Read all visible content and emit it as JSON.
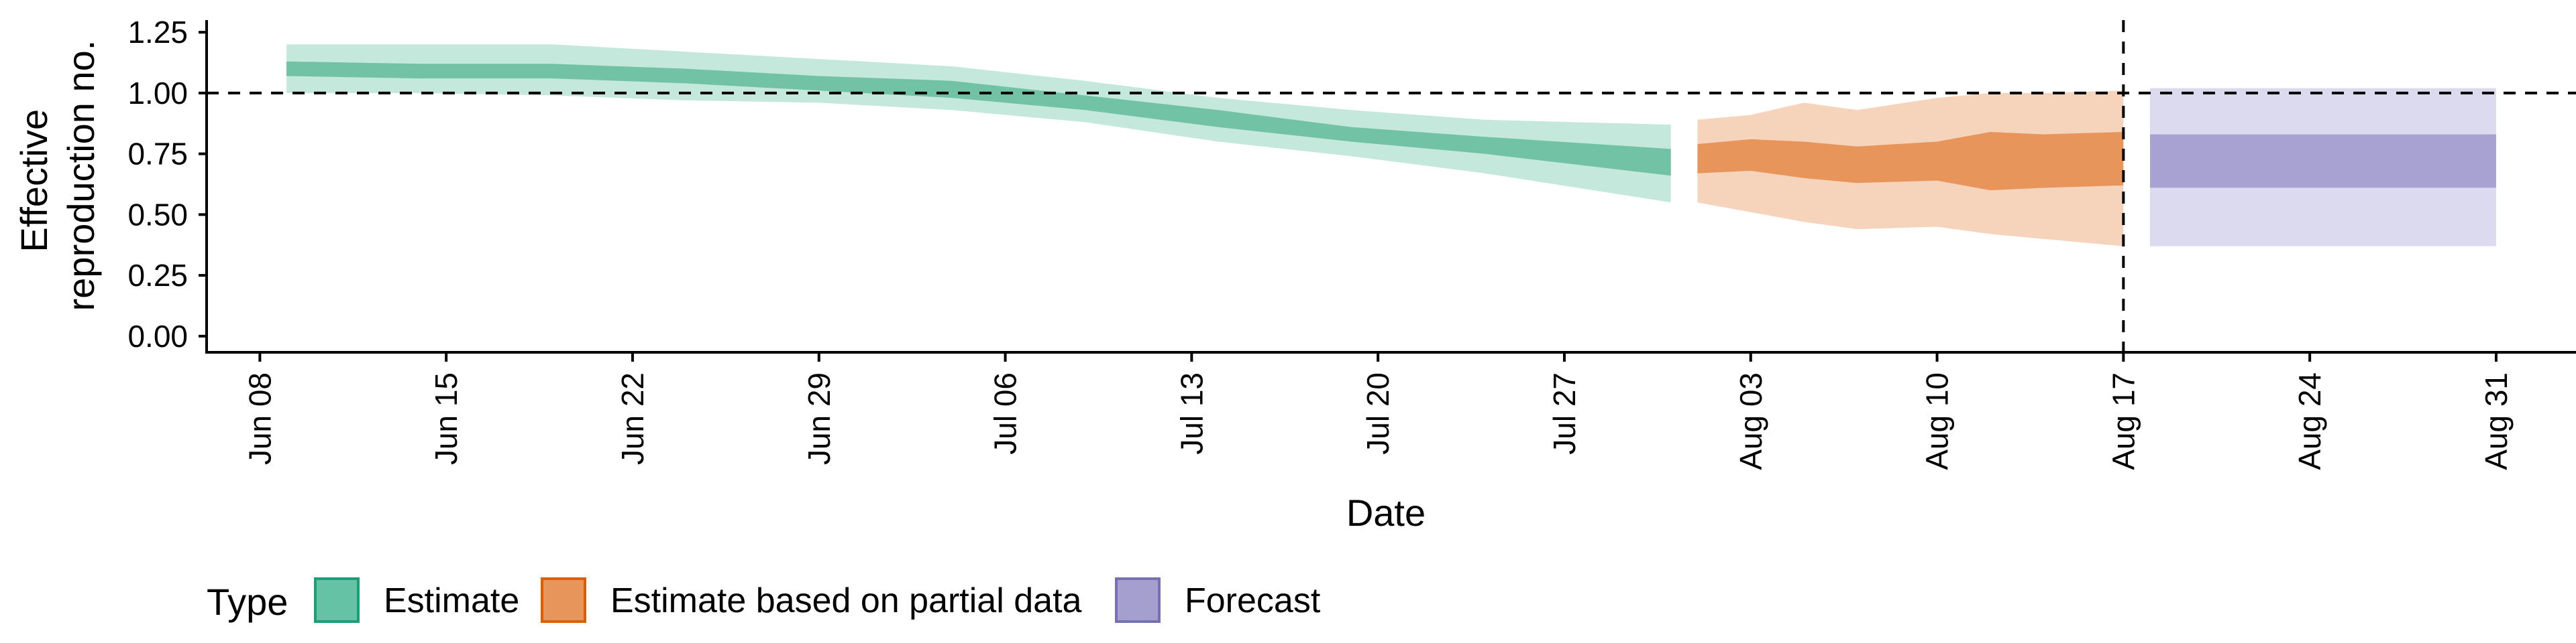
{
  "chart_data": {
    "type": "area",
    "xlabel": "Date",
    "ylabel": [
      "Effective",
      "reproduction no."
    ],
    "x_range": [
      "2020-06-06",
      "2020-09-03"
    ],
    "ylim": [
      -0.05,
      1.3
    ],
    "y_ticks": [
      "0.00",
      "0.25",
      "0.50",
      "0.75",
      "1.00",
      "1.25"
    ],
    "x_ticks": [
      {
        "date": "2020-06-08",
        "label": "Jun 08"
      },
      {
        "date": "2020-06-15",
        "label": "Jun 15"
      },
      {
        "date": "2020-06-22",
        "label": "Jun 22"
      },
      {
        "date": "2020-06-29",
        "label": "Jun 29"
      },
      {
        "date": "2020-07-06",
        "label": "Jul 06"
      },
      {
        "date": "2020-07-13",
        "label": "Jul 13"
      },
      {
        "date": "2020-07-20",
        "label": "Jul 20"
      },
      {
        "date": "2020-07-27",
        "label": "Jul 27"
      },
      {
        "date": "2020-08-03",
        "label": "Aug 03"
      },
      {
        "date": "2020-08-10",
        "label": "Aug 10"
      },
      {
        "date": "2020-08-17",
        "label": "Aug 17"
      },
      {
        "date": "2020-08-24",
        "label": "Aug 24"
      },
      {
        "date": "2020-08-31",
        "label": "Aug 31"
      }
    ],
    "hline": 1.0,
    "vline": "2020-08-17",
    "grid": false,
    "legend": {
      "position": "bottom-left",
      "title": "Type",
      "entries": [
        {
          "label": "Estimate",
          "fill": "#66c2a5",
          "stroke": "#1b9e77"
        },
        {
          "label": "Estimate based on partial data",
          "fill": "#e8955b",
          "stroke": "#d95f02"
        },
        {
          "label": "Forecast",
          "fill": "#a59fd0",
          "stroke": "#7570b3"
        }
      ]
    },
    "series": [
      {
        "name": "Estimate",
        "outer_color": "#c4e8dc",
        "inner_color": "#72c2a5",
        "points": [
          {
            "date": "2020-06-09",
            "lo90": 1.0,
            "lo50": 1.07,
            "hi50": 1.13,
            "hi90": 1.2
          },
          {
            "date": "2020-06-14",
            "lo90": 1.0,
            "lo50": 1.06,
            "hi50": 1.12,
            "hi90": 1.2
          },
          {
            "date": "2020-06-19",
            "lo90": 0.99,
            "lo50": 1.06,
            "hi50": 1.12,
            "hi90": 1.2
          },
          {
            "date": "2020-06-24",
            "lo90": 0.97,
            "lo50": 1.04,
            "hi50": 1.1,
            "hi90": 1.17
          },
          {
            "date": "2020-06-29",
            "lo90": 0.96,
            "lo50": 1.01,
            "hi50": 1.07,
            "hi90": 1.14
          },
          {
            "date": "2020-07-04",
            "lo90": 0.93,
            "lo50": 0.98,
            "hi50": 1.05,
            "hi90": 1.11
          },
          {
            "date": "2020-07-09",
            "lo90": 0.88,
            "lo50": 0.93,
            "hi50": 0.99,
            "hi90": 1.05
          },
          {
            "date": "2020-07-14",
            "lo90": 0.8,
            "lo50": 0.86,
            "hi50": 0.93,
            "hi90": 0.98
          },
          {
            "date": "2020-07-19",
            "lo90": 0.74,
            "lo50": 0.8,
            "hi50": 0.86,
            "hi90": 0.93
          },
          {
            "date": "2020-07-24",
            "lo90": 0.67,
            "lo50": 0.75,
            "hi50": 0.82,
            "hi90": 0.89
          },
          {
            "date": "2020-07-31",
            "lo90": 0.55,
            "lo50": 0.66,
            "hi50": 0.77,
            "hi90": 0.87
          }
        ]
      },
      {
        "name": "Estimate based on partial data",
        "outer_color": "#f6d3bb",
        "inner_color": "#e8955b",
        "points": [
          {
            "date": "2020-08-01",
            "lo90": 0.55,
            "lo50": 0.67,
            "hi50": 0.79,
            "hi90": 0.89
          },
          {
            "date": "2020-08-03",
            "lo90": 0.51,
            "lo50": 0.68,
            "hi50": 0.81,
            "hi90": 0.91
          },
          {
            "date": "2020-08-05",
            "lo90": 0.47,
            "lo50": 0.65,
            "hi50": 0.8,
            "hi90": 0.96
          },
          {
            "date": "2020-08-07",
            "lo90": 0.44,
            "lo50": 0.63,
            "hi50": 0.78,
            "hi90": 0.93
          },
          {
            "date": "2020-08-10",
            "lo90": 0.45,
            "lo50": 0.64,
            "hi50": 0.8,
            "hi90": 0.98
          },
          {
            "date": "2020-08-12",
            "lo90": 0.42,
            "lo50": 0.6,
            "hi50": 0.84,
            "hi90": 1.0
          },
          {
            "date": "2020-08-14",
            "lo90": 0.4,
            "lo50": 0.61,
            "hi50": 0.83,
            "hi90": 1.0
          },
          {
            "date": "2020-08-17",
            "lo90": 0.37,
            "lo50": 0.62,
            "hi50": 0.84,
            "hi90": 1.01
          }
        ]
      },
      {
        "name": "Forecast",
        "outer_color": "#dcdaee",
        "inner_color": "#a7a2d2",
        "points": [
          {
            "date": "2020-08-18",
            "lo90": 0.37,
            "lo50": 0.61,
            "hi50": 0.83,
            "hi90": 1.02
          },
          {
            "date": "2020-08-31",
            "lo90": 0.37,
            "lo50": 0.61,
            "hi50": 0.83,
            "hi90": 1.02
          }
        ]
      }
    ]
  }
}
